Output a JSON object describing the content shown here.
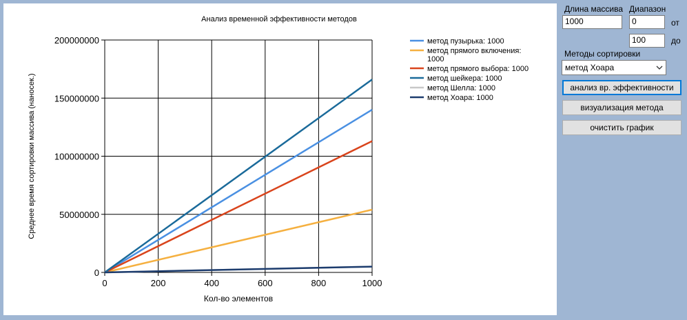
{
  "controls": {
    "array_length_label": "Длина массива",
    "array_length_value": "1000",
    "range_label": "Диапазон",
    "range_from_value": "0",
    "range_from_suffix": "от",
    "range_to_value": "100",
    "range_to_suffix": "до",
    "methods_label": "Методы сортировки",
    "method_selected": "метод Хоара",
    "analyze_button": "анализ вр. эффективности",
    "visualize_button": "визуализация метода",
    "clear_button": "очистить график"
  },
  "chart_data": {
    "type": "line",
    "title": "Анализ временной эффективности методов",
    "xlabel": "Кол-во элементов",
    "ylabel": "Среднее время сортировки массива (наносек.)",
    "xlim": [
      0,
      1000
    ],
    "ylim": [
      0,
      200000000
    ],
    "xticks": [
      0,
      200,
      400,
      600,
      800,
      1000
    ],
    "yticks": [
      0,
      50000000,
      100000000,
      150000000,
      200000000
    ],
    "xtick_labels": [
      "0",
      "200",
      "400",
      "600",
      "800",
      "1000"
    ],
    "ytick_labels": [
      "0",
      "50000000",
      "100000000",
      "150000000",
      "200000000"
    ],
    "grid": true,
    "legend_position": "top-right",
    "series": [
      {
        "name": "метод пузырька: 1000",
        "color": "#4a90e2",
        "x": [
          0,
          1000
        ],
        "y": [
          0,
          140000000
        ]
      },
      {
        "name": "метод прямого включения: 1000",
        "color": "#f5b040",
        "x": [
          0,
          1000
        ],
        "y": [
          0,
          54000000
        ]
      },
      {
        "name": "метод прямого выбора: 1000",
        "color": "#d9441c",
        "x": [
          0,
          1000
        ],
        "y": [
          0,
          113000000
        ]
      },
      {
        "name": "метод шейкера: 1000",
        "color": "#1a6a9a",
        "x": [
          0,
          1000
        ],
        "y": [
          0,
          166000000
        ]
      },
      {
        "name": "метод Шелла: 1000",
        "color": "#c8c8c8",
        "x": [
          0,
          1000
        ],
        "y": [
          0,
          5000000
        ]
      },
      {
        "name": "метод Хоара: 1000",
        "color": "#1c3c6e",
        "x": [
          0,
          1000
        ],
        "y": [
          0,
          5000000
        ]
      }
    ]
  }
}
